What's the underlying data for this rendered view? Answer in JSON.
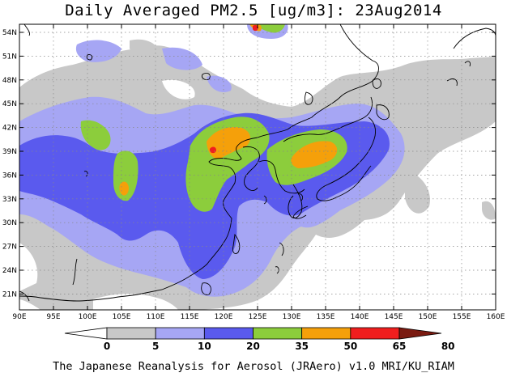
{
  "title": "Daily Averaged PM2.5 [ug/m3]: 23Aug2014",
  "credit": "The Japanese Reanalysis for Aerosol (JRAero) v1.0 MRI/KU_RIAM",
  "lat_labels": [
    "54N",
    "51N",
    "48N",
    "45N",
    "42N",
    "39N",
    "36N",
    "33N",
    "30N",
    "27N",
    "24N",
    "21N"
  ],
  "lon_labels": [
    "90E",
    "95E",
    "100E",
    "105E",
    "110E",
    "115E",
    "120E",
    "125E",
    "130E",
    "135E",
    "140E",
    "145E",
    "150E",
    "155E",
    "160E"
  ],
  "colorbar": {
    "labels": [
      "0",
      "5",
      "10",
      "20",
      "35",
      "50",
      "65",
      "80"
    ],
    "colors": [
      "#ffffff",
      "#c8c8c8",
      "#a6a6f4",
      "#5a5aee",
      "#8ccd3c",
      "#f5a00a",
      "#f01e1e",
      "#7a1a10"
    ]
  }
}
